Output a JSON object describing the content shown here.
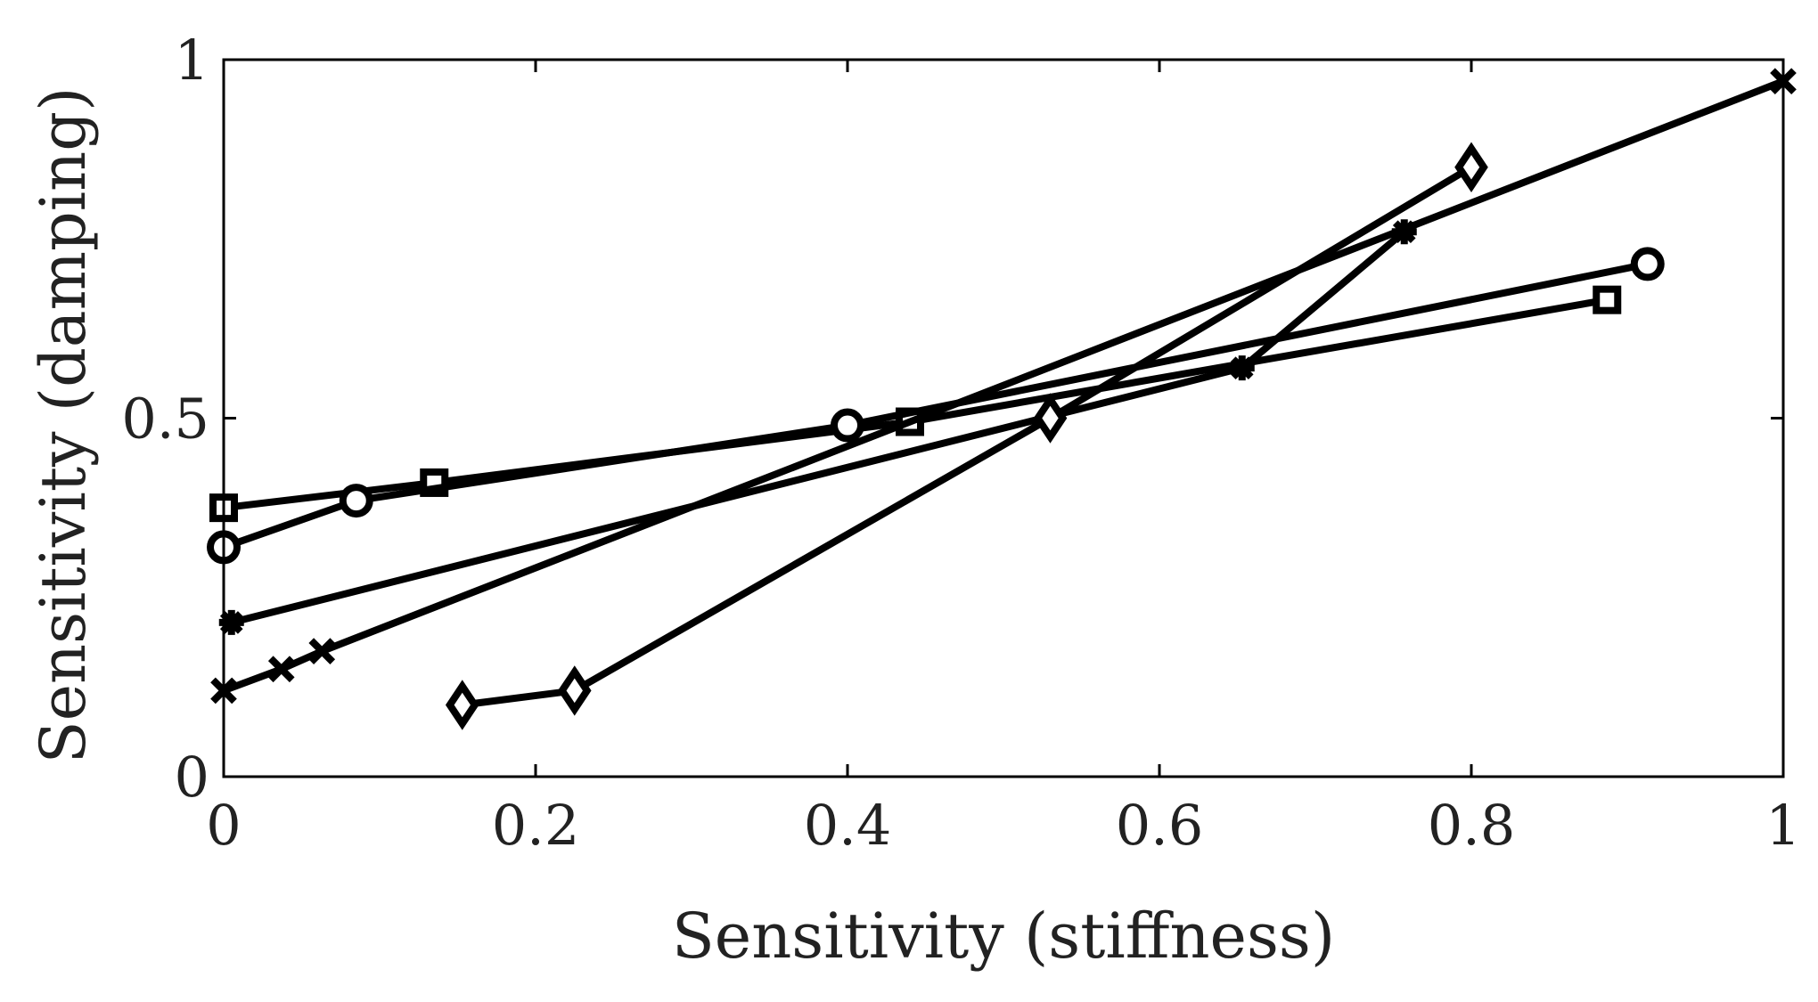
{
  "chart_data": {
    "type": "line",
    "title": "",
    "xlabel": "Sensitivity (stiffness)",
    "ylabel": "Sensitivity (damping)",
    "xlim": [
      0,
      1
    ],
    "ylim": [
      0,
      1
    ],
    "xticks": [
      0,
      0.2,
      0.4,
      0.6,
      0.8,
      1
    ],
    "xtick_labels": [
      "0",
      "0.2",
      "0.4",
      "0.6",
      "0.8",
      "1"
    ],
    "yticks": [
      0,
      0.5,
      1
    ],
    "ytick_labels": [
      "0",
      "0.5",
      "1"
    ],
    "grid": false,
    "line_color": "#000000",
    "series": [
      {
        "name": "square",
        "marker": "square",
        "x": [
          0.0,
          0.135,
          0.44,
          0.887
        ],
        "y": [
          0.375,
          0.41,
          0.495,
          0.665
        ]
      },
      {
        "name": "circle",
        "marker": "circle",
        "x": [
          0.0,
          0.085,
          0.4,
          0.913
        ],
        "y": [
          0.32,
          0.385,
          0.49,
          0.715
        ]
      },
      {
        "name": "asterisk",
        "marker": "asterisk",
        "x": [
          0.005,
          0.653,
          0.757
        ],
        "y": [
          0.215,
          0.57,
          0.76
        ]
      },
      {
        "name": "cross",
        "marker": "cross",
        "x": [
          0.0,
          0.037,
          0.063,
          1.0
        ],
        "y": [
          0.12,
          0.15,
          0.175,
          0.97
        ]
      },
      {
        "name": "diamond",
        "marker": "diamond",
        "x": [
          0.153,
          0.225,
          0.53,
          0.8
        ],
        "y": [
          0.1,
          0.12,
          0.5,
          0.85
        ]
      }
    ]
  }
}
